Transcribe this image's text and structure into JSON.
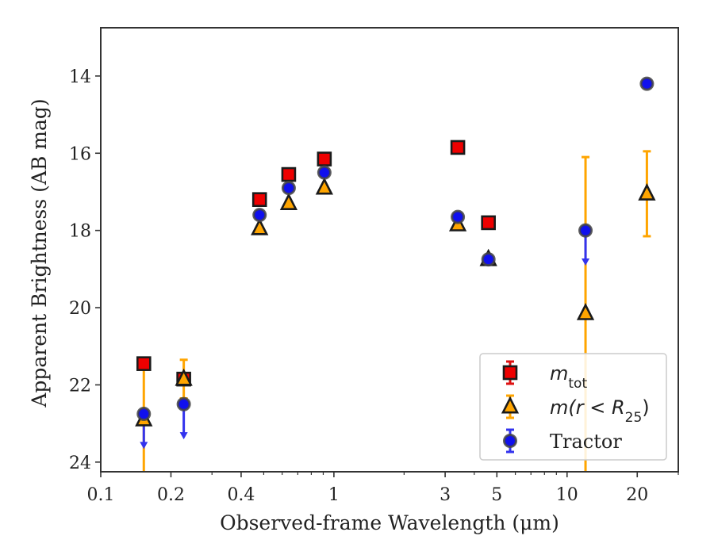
{
  "chart_data": {
    "type": "scatter",
    "xlabel": "Observed-frame Wavelength (μm)",
    "ylabel": "Apparent Brightness (AB mag)",
    "x_scale": "log",
    "xlim": [
      0.1,
      30
    ],
    "ylim": [
      24.25,
      12.75
    ],
    "y_inverted": true,
    "x_ticks": [
      {
        "value": 0.1,
        "label": "0.1"
      },
      {
        "value": 0.2,
        "label": "0.2"
      },
      {
        "value": 0.4,
        "label": "0.4"
      },
      {
        "value": 1,
        "label": "1"
      },
      {
        "value": 3,
        "label": "3"
      },
      {
        "value": 5,
        "label": "5"
      },
      {
        "value": 10,
        "label": "10"
      },
      {
        "value": 20,
        "label": "20"
      }
    ],
    "y_ticks": [
      {
        "value": 14,
        "label": "14"
      },
      {
        "value": 16,
        "label": "16"
      },
      {
        "value": 18,
        "label": "18"
      },
      {
        "value": 20,
        "label": "20"
      },
      {
        "value": 22,
        "label": "22"
      },
      {
        "value": 24,
        "label": "24"
      }
    ],
    "legend_position": "lower-right",
    "series": [
      {
        "name": "m_tot",
        "legend_main": "m",
        "legend_sub": "tot",
        "marker": "square",
        "color": "#ee0000",
        "errcolor": "#dd1111",
        "points": [
          {
            "x": 0.153,
            "y": 21.45
          },
          {
            "x": 0.227,
            "y": 21.85
          },
          {
            "x": 0.48,
            "y": 17.2
          },
          {
            "x": 0.64,
            "y": 16.55
          },
          {
            "x": 0.91,
            "y": 16.15
          },
          {
            "x": 3.4,
            "y": 15.85
          },
          {
            "x": 4.6,
            "y": 17.8
          }
        ]
      },
      {
        "name": "m(r<R25)",
        "legend_main": "m(r < R",
        "legend_sub": "25",
        "legend_tail": ")",
        "marker": "triangle",
        "color": "#ffa500",
        "errcolor": "#ffa500",
        "points": [
          {
            "x": 0.153,
            "y": 22.9,
            "yerr": [
              21.45,
              24.25
            ]
          },
          {
            "x": 0.227,
            "y": 21.85,
            "yerr": [
              21.35,
              22.35
            ]
          },
          {
            "x": 0.48,
            "y": 17.95
          },
          {
            "x": 0.64,
            "y": 17.3
          },
          {
            "x": 0.91,
            "y": 16.9
          },
          {
            "x": 3.4,
            "y": 17.85
          },
          {
            "x": 4.6,
            "y": 18.75
          },
          {
            "x": 12.0,
            "y": 20.15,
            "yerr": [
              16.1,
              24.25
            ]
          },
          {
            "x": 22.0,
            "y": 17.05,
            "yerr": [
              15.95,
              18.15
            ]
          }
        ]
      },
      {
        "name": "Tractor",
        "legend_main": "Tractor",
        "marker": "circle",
        "color": "#1010ee",
        "errcolor": "#3333ee",
        "points": [
          {
            "x": 0.153,
            "y": 22.75,
            "upper_limit": true,
            "arrow_to": 23.6
          },
          {
            "x": 0.227,
            "y": 22.5,
            "upper_limit": true,
            "arrow_to": 23.35
          },
          {
            "x": 0.48,
            "y": 17.6
          },
          {
            "x": 0.64,
            "y": 16.9
          },
          {
            "x": 0.91,
            "y": 16.5
          },
          {
            "x": 3.4,
            "y": 17.65
          },
          {
            "x": 4.6,
            "y": 18.75
          },
          {
            "x": 12.0,
            "y": 18.0,
            "upper_limit": true,
            "arrow_to": 18.85
          },
          {
            "x": 22.0,
            "y": 14.2
          }
        ]
      }
    ]
  }
}
